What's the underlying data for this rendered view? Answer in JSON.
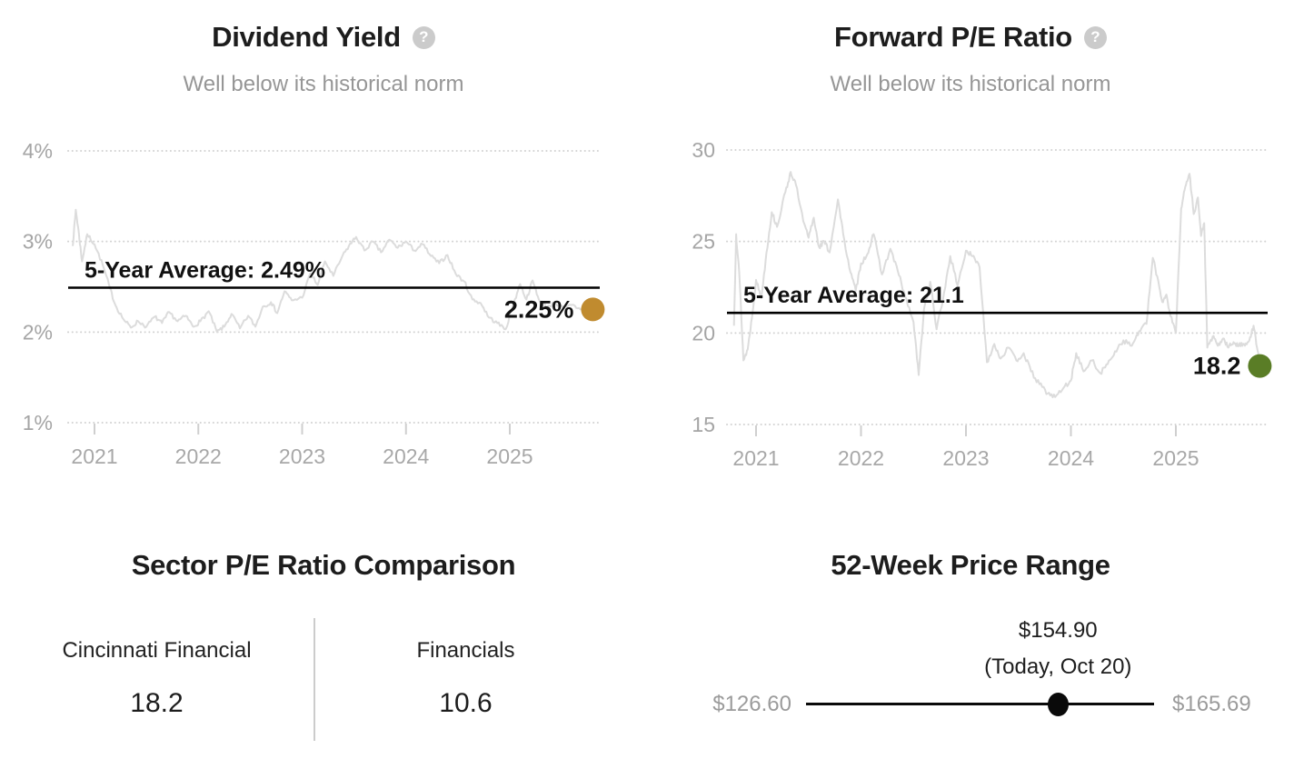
{
  "chart_data": [
    {
      "type": "line",
      "title": "Dividend Yield",
      "help_icon": "?",
      "subtitle": "Well below its historical norm",
      "ylim": [
        1,
        4
      ],
      "xlim": [
        2020.75,
        2025.85
      ],
      "grid": "dotted-horizontal",
      "legend": "none",
      "yticks": [
        {
          "value": 4,
          "label": "4%"
        },
        {
          "value": 3,
          "label": "3%"
        },
        {
          "value": 2,
          "label": "2%"
        },
        {
          "value": 1,
          "label": "1%"
        }
      ],
      "xticks": [
        {
          "value": 2021,
          "label": "2021"
        },
        {
          "value": 2022,
          "label": "2022"
        },
        {
          "value": 2023,
          "label": "2023"
        },
        {
          "value": 2024,
          "label": "2024"
        },
        {
          "value": 2025,
          "label": "2025"
        }
      ],
      "average": {
        "value": 2.49,
        "label": "5-Year Average: 2.49%"
      },
      "current": {
        "value": 2.25,
        "label": "2.25%",
        "dot_color": "#c08b2f"
      },
      "line_color": "#dcdcdc",
      "points": [
        [
          2020.79,
          2.95
        ],
        [
          2020.82,
          3.35
        ],
        [
          2020.85,
          3.08
        ],
        [
          2020.88,
          2.78
        ],
        [
          2020.93,
          3.08
        ],
        [
          2021.0,
          2.97
        ],
        [
          2021.08,
          2.74
        ],
        [
          2021.15,
          2.48
        ],
        [
          2021.2,
          2.3
        ],
        [
          2021.28,
          2.14
        ],
        [
          2021.35,
          2.05
        ],
        [
          2021.42,
          2.12
        ],
        [
          2021.5,
          2.06
        ],
        [
          2021.58,
          2.17
        ],
        [
          2021.65,
          2.1
        ],
        [
          2021.72,
          2.22
        ],
        [
          2021.8,
          2.12
        ],
        [
          2021.88,
          2.18
        ],
        [
          2021.95,
          2.06
        ],
        [
          2022.02,
          2.12
        ],
        [
          2022.1,
          2.23
        ],
        [
          2022.18,
          2.0
        ],
        [
          2022.25,
          2.06
        ],
        [
          2022.32,
          2.2
        ],
        [
          2022.4,
          2.04
        ],
        [
          2022.48,
          2.18
        ],
        [
          2022.55,
          2.06
        ],
        [
          2022.62,
          2.28
        ],
        [
          2022.7,
          2.33
        ],
        [
          2022.76,
          2.21
        ],
        [
          2022.83,
          2.45
        ],
        [
          2022.9,
          2.35
        ],
        [
          2023.0,
          2.38
        ],
        [
          2023.08,
          2.65
        ],
        [
          2023.15,
          2.52
        ],
        [
          2023.22,
          2.78
        ],
        [
          2023.3,
          2.62
        ],
        [
          2023.38,
          2.82
        ],
        [
          2023.45,
          2.95
        ],
        [
          2023.52,
          3.05
        ],
        [
          2023.6,
          2.9
        ],
        [
          2023.68,
          3.0
        ],
        [
          2023.76,
          2.88
        ],
        [
          2023.84,
          3.02
        ],
        [
          2023.92,
          2.93
        ],
        [
          2024.0,
          3.0
        ],
        [
          2024.08,
          2.9
        ],
        [
          2024.16,
          2.97
        ],
        [
          2024.24,
          2.84
        ],
        [
          2024.32,
          2.76
        ],
        [
          2024.4,
          2.85
        ],
        [
          2024.48,
          2.64
        ],
        [
          2024.56,
          2.56
        ],
        [
          2024.64,
          2.36
        ],
        [
          2024.72,
          2.32
        ],
        [
          2024.8,
          2.16
        ],
        [
          2024.88,
          2.1
        ],
        [
          2024.96,
          2.03
        ],
        [
          2025.04,
          2.33
        ],
        [
          2025.1,
          2.53
        ],
        [
          2025.16,
          2.36
        ],
        [
          2025.22,
          2.57
        ],
        [
          2025.28,
          2.36
        ],
        [
          2025.36,
          2.28
        ],
        [
          2025.44,
          2.32
        ],
        [
          2025.52,
          2.26
        ],
        [
          2025.6,
          2.3
        ],
        [
          2025.68,
          2.25
        ],
        [
          2025.74,
          2.3
        ],
        [
          2025.8,
          2.25
        ]
      ]
    },
    {
      "type": "line",
      "title": "Forward P/E Ratio",
      "help_icon": "?",
      "subtitle": "Well below its historical norm",
      "ylim": [
        15,
        30
      ],
      "xlim": [
        2020.75,
        2025.85
      ],
      "grid": "dotted-horizontal",
      "legend": "none",
      "yticks": [
        {
          "value": 30,
          "label": "30"
        },
        {
          "value": 25,
          "label": "25"
        },
        {
          "value": 20,
          "label": "20"
        },
        {
          "value": 15,
          "label": "15"
        }
      ],
      "xticks": [
        {
          "value": 2021,
          "label": "2021"
        },
        {
          "value": 2022,
          "label": "2022"
        },
        {
          "value": 2023,
          "label": "2023"
        },
        {
          "value": 2024,
          "label": "2024"
        },
        {
          "value": 2025,
          "label": "2025"
        }
      ],
      "average": {
        "value": 21.1,
        "label": "5-Year Average: 21.1"
      },
      "current": {
        "value": 18.2,
        "label": "18.2",
        "dot_color": "#5a7d26"
      },
      "line_color": "#dcdcdc",
      "points": [
        [
          2020.79,
          20.4
        ],
        [
          2020.81,
          25.4
        ],
        [
          2020.84,
          23.3
        ],
        [
          2020.88,
          18.5
        ],
        [
          2020.92,
          19.1
        ],
        [
          2020.96,
          20.8
        ],
        [
          2021.0,
          22.9
        ],
        [
          2021.05,
          21.9
        ],
        [
          2021.1,
          24.4
        ],
        [
          2021.15,
          26.6
        ],
        [
          2021.2,
          25.8
        ],
        [
          2021.28,
          27.7
        ],
        [
          2021.33,
          28.8
        ],
        [
          2021.38,
          28.1
        ],
        [
          2021.45,
          26.1
        ],
        [
          2021.5,
          25.2
        ],
        [
          2021.55,
          26.3
        ],
        [
          2021.6,
          24.7
        ],
        [
          2021.65,
          25.0
        ],
        [
          2021.7,
          24.4
        ],
        [
          2021.78,
          27.3
        ],
        [
          2021.83,
          25.4
        ],
        [
          2021.9,
          23.3
        ],
        [
          2021.95,
          22.3
        ],
        [
          2022.0,
          23.8
        ],
        [
          2022.06,
          24.3
        ],
        [
          2022.12,
          25.4
        ],
        [
          2022.2,
          23.2
        ],
        [
          2022.28,
          24.6
        ],
        [
          2022.35,
          23.4
        ],
        [
          2022.42,
          22.0
        ],
        [
          2022.5,
          20.6
        ],
        [
          2022.55,
          17.7
        ],
        [
          2022.6,
          21.3
        ],
        [
          2022.66,
          22.8
        ],
        [
          2022.72,
          20.2
        ],
        [
          2022.78,
          21.8
        ],
        [
          2022.85,
          24.2
        ],
        [
          2022.92,
          22.6
        ],
        [
          2023.0,
          24.5
        ],
        [
          2023.06,
          24.2
        ],
        [
          2023.13,
          23.6
        ],
        [
          2023.2,
          18.4
        ],
        [
          2023.27,
          19.4
        ],
        [
          2023.33,
          18.6
        ],
        [
          2023.4,
          19.2
        ],
        [
          2023.48,
          18.5
        ],
        [
          2023.55,
          18.9
        ],
        [
          2023.62,
          17.9
        ],
        [
          2023.7,
          17.2
        ],
        [
          2023.78,
          16.7
        ],
        [
          2023.85,
          16.5
        ],
        [
          2023.93,
          17.0
        ],
        [
          2024.0,
          17.4
        ],
        [
          2024.05,
          18.9
        ],
        [
          2024.12,
          17.9
        ],
        [
          2024.2,
          18.5
        ],
        [
          2024.28,
          17.8
        ],
        [
          2024.35,
          18.3
        ],
        [
          2024.42,
          19.0
        ],
        [
          2024.5,
          19.6
        ],
        [
          2024.58,
          19.3
        ],
        [
          2024.65,
          20.1
        ],
        [
          2024.72,
          20.5
        ],
        [
          2024.78,
          24.1
        ],
        [
          2024.83,
          22.9
        ],
        [
          2024.87,
          21.7
        ],
        [
          2024.91,
          22.1
        ],
        [
          2024.95,
          20.9
        ],
        [
          2025.0,
          20.0
        ],
        [
          2025.05,
          26.8
        ],
        [
          2025.09,
          28.0
        ],
        [
          2025.13,
          28.7
        ],
        [
          2025.17,
          26.5
        ],
        [
          2025.21,
          27.4
        ],
        [
          2025.24,
          25.3
        ],
        [
          2025.27,
          26.0
        ],
        [
          2025.3,
          19.2
        ],
        [
          2025.35,
          19.8
        ],
        [
          2025.4,
          19.3
        ],
        [
          2025.45,
          19.7
        ],
        [
          2025.5,
          19.2
        ],
        [
          2025.55,
          19.5
        ],
        [
          2025.6,
          19.3
        ],
        [
          2025.65,
          19.4
        ],
        [
          2025.7,
          19.6
        ],
        [
          2025.74,
          20.4
        ],
        [
          2025.78,
          19.0
        ],
        [
          2025.8,
          18.2
        ]
      ]
    }
  ],
  "sector_comparison": {
    "title": "Sector P/E Ratio Comparison",
    "columns": [
      {
        "label": "Cincinnati Financial",
        "value": "18.2"
      },
      {
        "label": "Financials",
        "value": "10.6"
      }
    ]
  },
  "price_range": {
    "title": "52-Week Price Range",
    "current_price": "$154.90",
    "current_note": "(Today, Oct 20)",
    "low": "$126.60",
    "high": "$165.69",
    "position_pct": 72.4
  }
}
